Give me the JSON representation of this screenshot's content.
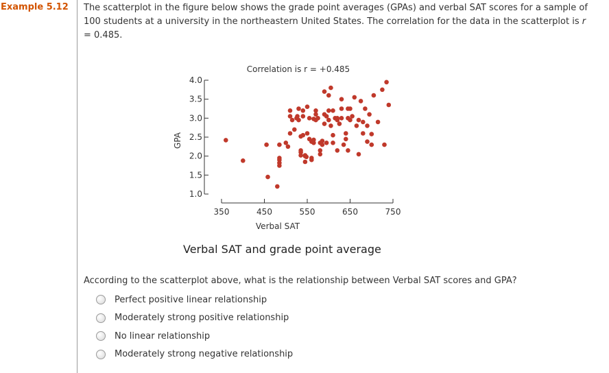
{
  "example": {
    "label": "Example 5.12"
  },
  "intro": {
    "text_main": "The scatterplot in the figure below shows the grade point averages (GPAs) and verbal SAT scores for a sample of 100 students at a university in the northeastern United States. The correlation for the data in the scatterplot is ",
    "r_symbol": "r",
    "text_tail": " = 0.485."
  },
  "chart_data": {
    "type": "scatter",
    "title": "Correlation is r = +0.485",
    "caption": "Verbal SAT and grade point average",
    "xlabel": "Verbal SAT",
    "ylabel": "GPA",
    "xlim": [
      350,
      750
    ],
    "ylim": [
      1.0,
      4.0
    ],
    "xticks": [
      "350",
      "450",
      "550",
      "650",
      "750"
    ],
    "yticks": [
      "1.0",
      "1.5",
      "2.0",
      "2.5",
      "3.0",
      "3.5",
      "4.0"
    ],
    "grid": false,
    "x": [
      360,
      400,
      455,
      458,
      480,
      485,
      485,
      485,
      485,
      485,
      500,
      505,
      510,
      510,
      510,
      515,
      520,
      525,
      527,
      530,
      530,
      535,
      535,
      535,
      535,
      540,
      540,
      540,
      545,
      545,
      545,
      548,
      550,
      550,
      555,
      555,
      560,
      560,
      560,
      565,
      565,
      565,
      570,
      570,
      570,
      575,
      580,
      580,
      580,
      585,
      585,
      590,
      590,
      590,
      595,
      595,
      600,
      600,
      600,
      605,
      605,
      610,
      610,
      610,
      615,
      620,
      620,
      620,
      625,
      630,
      630,
      630,
      635,
      640,
      640,
      645,
      645,
      645,
      650,
      650,
      655,
      660,
      665,
      670,
      670,
      675,
      680,
      680,
      685,
      690,
      690,
      695,
      700,
      700,
      705,
      715,
      725,
      730,
      735,
      740
    ],
    "y": [
      2.42,
      1.88,
      2.3,
      1.45,
      1.2,
      2.3,
      1.9,
      1.82,
      1.75,
      1.95,
      2.35,
      2.25,
      2.6,
      3.2,
      3.05,
      2.95,
      2.7,
      3.0,
      3.05,
      2.95,
      3.25,
      2.02,
      2.1,
      2.15,
      2.52,
      2.55,
      3.2,
      3.05,
      2.0,
      1.85,
      2.02,
      1.98,
      2.6,
      3.3,
      2.45,
      3.0,
      2.38,
      1.9,
      1.95,
      2.43,
      2.35,
      2.98,
      3.1,
      2.95,
      3.2,
      3.0,
      2.05,
      2.15,
      2.35,
      2.3,
      2.4,
      2.85,
      3.1,
      3.7,
      3.05,
      2.35,
      2.95,
      3.6,
      3.2,
      2.8,
      3.8,
      3.2,
      2.55,
      2.35,
      3.0,
      2.15,
      3.0,
      2.95,
      2.85,
      3.0,
      3.25,
      3.5,
      2.3,
      2.6,
      2.45,
      3.0,
      2.15,
      3.25,
      2.95,
      3.25,
      3.05,
      3.55,
      2.8,
      2.05,
      2.95,
      3.45,
      2.9,
      2.6,
      3.25,
      2.8,
      2.38,
      3.1,
      2.58,
      2.3,
      3.6,
      2.9,
      3.75,
      2.3,
      3.95,
      3.35
    ]
  },
  "question": {
    "text": "According to the scatterplot above, what is the relationship between Verbal SAT scores and GPA?"
  },
  "options": [
    {
      "label": "Perfect positive linear relationship"
    },
    {
      "label": "Moderately strong positive relationship"
    },
    {
      "label": "No linear relationship"
    },
    {
      "label": "Moderately strong negative relationship"
    }
  ],
  "colors": {
    "point": "#c0392b",
    "example_tag": "#d35400"
  }
}
